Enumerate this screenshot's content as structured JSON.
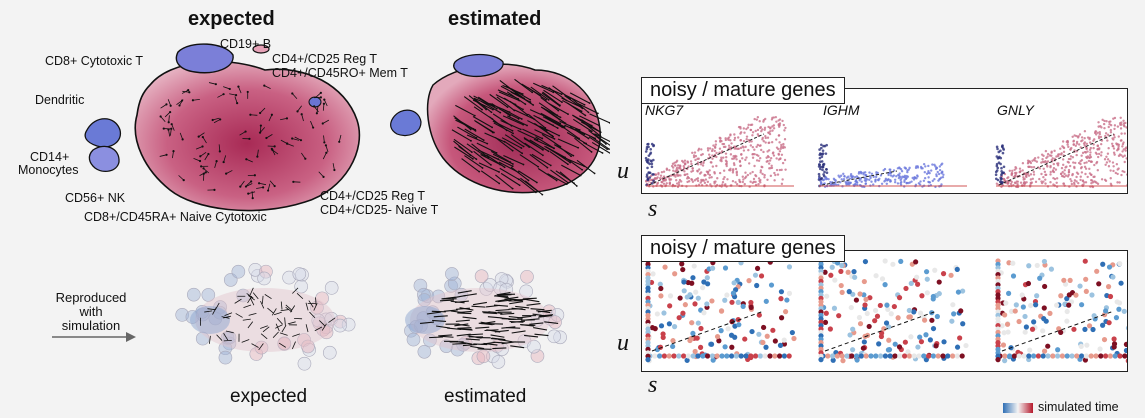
{
  "top": {
    "title_expected": "expected",
    "title_estimated": "estimated",
    "labels": {
      "cd19b": "CD19+ B",
      "cd4_reg_top": "CD4+/CD25 Reg T",
      "cd4_mem": "CD4+/CD45RO+ Mem T",
      "cd8_cyto": "CD8+ Cytotoxic T",
      "dendritic": "Dendritic",
      "cd14_a": "CD14+",
      "cd14_b": "Monocytes",
      "cd56": "CD56+ NK",
      "cd4_reg_bottom": "CD4+/CD25 Reg T",
      "cd4_naive": "CD4+/CD25- Naive T",
      "cd8_naive": "CD8+/CD45RA+ Naive Cytotoxic"
    }
  },
  "bottom": {
    "reproduced_line1": "Reproduced",
    "reproduced_line2": "with simulation",
    "caption_expected": "expected",
    "caption_estimated": "estimated"
  },
  "right": {
    "panel1_title": "noisy / mature genes",
    "panel2_title": "noisy / mature genes",
    "genes": [
      "NKG7",
      "IGHM",
      "GNLY"
    ],
    "axis_u": "u",
    "axis_s": "s",
    "colorbar_label": "simulated time"
  },
  "colors": {
    "red": "#a8204a",
    "blue": "#4e62d6",
    "pink": "#e9a8bc",
    "sim_red": "#b5182b",
    "sim_blue": "#2f6fb5"
  }
}
